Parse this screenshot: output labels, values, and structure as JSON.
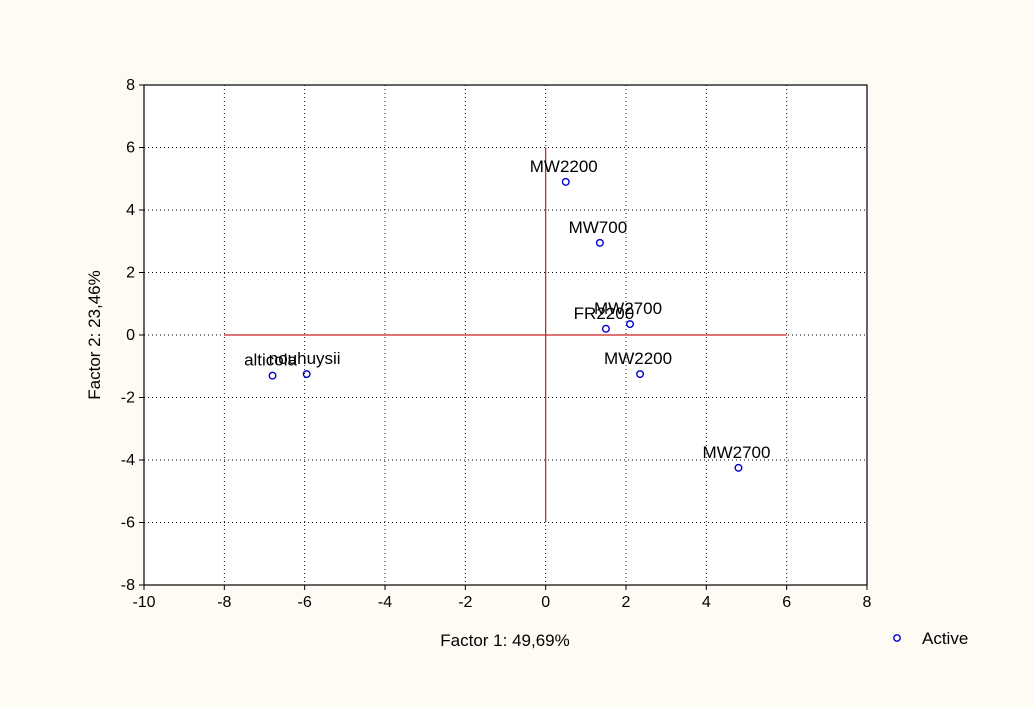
{
  "chart_data": {
    "type": "scatter",
    "xlabel": "Factor 1: 49,69%",
    "ylabel": "Factor 2: 23,46%",
    "xlim": [
      -10,
      8
    ],
    "ylim": [
      -8,
      8
    ],
    "xticks": [
      -10,
      -8,
      -6,
      -4,
      -2,
      0,
      2,
      4,
      6,
      8
    ],
    "yticks": [
      -8,
      -6,
      -4,
      -2,
      0,
      2,
      4,
      6,
      8
    ],
    "grid": true,
    "legend_position": "bottom-right",
    "series": [
      {
        "name": "Active",
        "color": "#0000cc",
        "marker": "open-circle",
        "points": [
          {
            "label": "alticola",
            "x": -6.8,
            "y": -1.3
          },
          {
            "label": "nouhuysii",
            "x": -5.95,
            "y": -1.25
          },
          {
            "label": "MW2200",
            "x": 0.5,
            "y": 4.9
          },
          {
            "label": "MW700",
            "x": 1.35,
            "y": 2.95
          },
          {
            "label": "FR2200",
            "x": 1.5,
            "y": 0.2
          },
          {
            "label": "MW2700",
            "x": 2.1,
            "y": 0.35
          },
          {
            "label": "MW2200",
            "x": 2.35,
            "y": -1.25
          },
          {
            "label": "MW2700",
            "x": 4.8,
            "y": -4.25
          }
        ]
      }
    ],
    "reference_lines": {
      "color": "#cc2020",
      "horizontal": {
        "y": 0,
        "x_range": [
          -8,
          6
        ]
      },
      "vertical": {
        "x": 0,
        "y_range": [
          -6,
          6
        ]
      }
    }
  }
}
